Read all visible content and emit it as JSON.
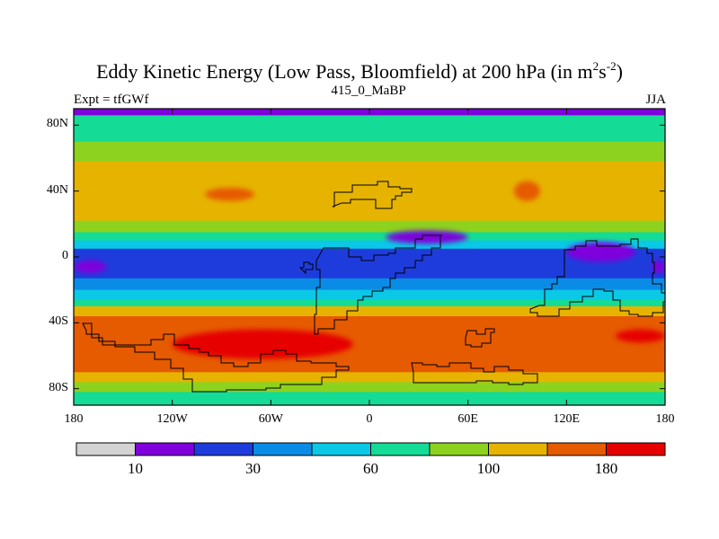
{
  "title": {
    "main": "Eddy Kinetic Energy (Low Pass, Bloomfield) at 200 hPa (in m",
    "sup1": "2",
    "mid": "s",
    "sup2": "-2",
    "close": ")"
  },
  "left_string": "Expt = tfGWf",
  "center_string": "415_0_MaBP",
  "right_string": "JJA",
  "map": {
    "lon_range": [
      -180,
      180
    ],
    "lat_range": [
      -90,
      90
    ],
    "y_ticks": [
      {
        "lat": 80,
        "label": "80N"
      },
      {
        "lat": 40,
        "label": "40N"
      },
      {
        "lat": 0,
        "label": "0"
      },
      {
        "lat": -40,
        "label": "40S"
      },
      {
        "lat": -80,
        "label": "80S"
      }
    ],
    "x_ticks": [
      {
        "lon": -180,
        "label": "180"
      },
      {
        "lon": -120,
        "label": "120W"
      },
      {
        "lon": -60,
        "label": "60W"
      },
      {
        "lon": 0,
        "label": "0"
      },
      {
        "lon": 60,
        "label": "60E"
      },
      {
        "lon": 120,
        "label": "120E"
      },
      {
        "lon": 180,
        "label": "180"
      }
    ]
  },
  "colorbar": {
    "colors": [
      "#d3d3d3",
      "#7f00dc",
      "#1e3cdc",
      "#0a8ce6",
      "#0ac8e6",
      "#14dc96",
      "#8cd21e",
      "#e6b400",
      "#e65a00",
      "#e60000"
    ],
    "labels": [
      {
        "boundary": 1,
        "text": "10"
      },
      {
        "boundary": 3,
        "text": "30"
      },
      {
        "boundary": 5,
        "text": "60"
      },
      {
        "boundary": 7,
        "text": "100"
      },
      {
        "boundary": 9,
        "text": "180"
      }
    ]
  },
  "chart_data": {
    "type": "heatmap",
    "title": "Eddy Kinetic Energy (Low Pass, Bloomfield) at 200 hPa (in m2s-2)",
    "variable": "Eddy Kinetic Energy",
    "units": "m2 s-2",
    "season": "JJA",
    "experiment": "tfGWf",
    "case": "415_0_MaBP",
    "level": "200 hPa",
    "x_axis": {
      "type": "longitude",
      "range": [
        -180,
        180
      ],
      "ticks": [
        "180",
        "120W",
        "60W",
        "0",
        "60E",
        "120E",
        "180"
      ]
    },
    "y_axis": {
      "type": "latitude",
      "range": [
        -90,
        90
      ],
      "ticks": [
        "80N",
        "40N",
        "0",
        "40S",
        "80S"
      ]
    },
    "zonal_band_levels": [
      {
        "lat_range": [
          86,
          90
        ],
        "color_index": 1
      },
      {
        "lat_range": [
          70,
          86
        ],
        "color_index": 5
      },
      {
        "lat_range": [
          58,
          70
        ],
        "color_index": 6
      },
      {
        "lat_range": [
          22,
          58
        ],
        "color_index": 7
      },
      {
        "lat_range": [
          15,
          22
        ],
        "color_index": 6
      },
      {
        "lat_range": [
          10,
          15
        ],
        "color_index": 5
      },
      {
        "lat_range": [
          5,
          10
        ],
        "color_index": 4
      },
      {
        "lat_range": [
          -13,
          5
        ],
        "color_index": 2
      },
      {
        "lat_range": [
          -20,
          -13
        ],
        "color_index": 3
      },
      {
        "lat_range": [
          -26,
          -20
        ],
        "color_index": 4
      },
      {
        "lat_range": [
          -30,
          -26
        ],
        "color_index": 5
      },
      {
        "lat_range": [
          -36,
          -30
        ],
        "color_index": 7
      },
      {
        "lat_range": [
          -70,
          -36
        ],
        "color_index": 8
      },
      {
        "lat_range": [
          -76,
          -70
        ],
        "color_index": 7
      },
      {
        "lat_range": [
          -82,
          -76
        ],
        "color_index": 6
      },
      {
        "lat_range": [
          -90,
          -82
        ],
        "color_index": 5
      }
    ],
    "features": [
      {
        "kind": "maximum",
        "lon_range": [
          -120,
          -10
        ],
        "lat_range": [
          -62,
          -44
        ],
        "color_index": 9
      },
      {
        "kind": "maximum",
        "lon_range": [
          150,
          180
        ],
        "lat_range": [
          -52,
          -44
        ],
        "color_index": 9
      },
      {
        "kind": "maximum",
        "lon_range": [
          -100,
          -70
        ],
        "lat_range": [
          34,
          42
        ],
        "color_index": 8
      },
      {
        "kind": "maximum",
        "lon_range": [
          88,
          104
        ],
        "lat_range": [
          34,
          46
        ],
        "color_index": 8
      },
      {
        "kind": "minimum",
        "lon_range": [
          10,
          60
        ],
        "lat_range": [
          8,
          16
        ],
        "color_index": 1
      },
      {
        "kind": "minimum",
        "lon_range": [
          120,
          162
        ],
        "lat_range": [
          -3,
          9
        ],
        "color_index": 1
      },
      {
        "kind": "minimum",
        "lon_range": [
          -180,
          -160
        ],
        "lat_range": [
          -10,
          -2
        ],
        "color_index": 1
      },
      {
        "kind": "minimum",
        "lon_range": [
          172,
          180
        ],
        "lat_range": [
          -10,
          -2
        ],
        "color_index": 1
      }
    ]
  }
}
